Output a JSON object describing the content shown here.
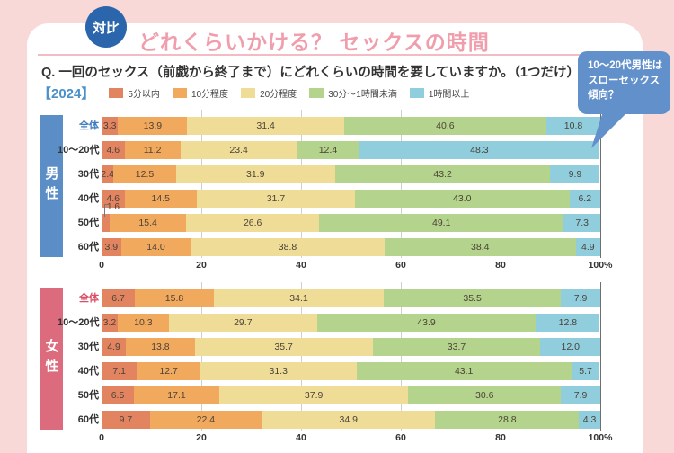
{
  "header": {
    "badge": "対比",
    "title": "どれくらいかける？ セックスの時間",
    "question": "Q. 一回のセックス（前戯から終了まで）にどれくらいの時間を要していますか。（1つだけ）",
    "year_label": "【2024】"
  },
  "callout": {
    "lines": [
      "10～20代男性は",
      "スローセックス",
      "傾向？"
    ]
  },
  "colors": {
    "background": "#F8D9D7",
    "card": "#FFFFFF",
    "title_pink": "#F09EAC",
    "badge_blue": "#2B66AC",
    "callout_blue": "#6190CB",
    "male_accent": "#5B8EC6",
    "male_total_label": "#3F7DBF",
    "female_accent": "#DB6B7D",
    "female_total_label": "#D84F66",
    "year_blue": "#4A90C9"
  },
  "chart_data": {
    "type": "bar",
    "stacked": true,
    "orientation": "horizontal",
    "unit": "%",
    "xlim": [
      0,
      100
    ],
    "x_ticks": [
      "0",
      "20",
      "40",
      "60",
      "80",
      "100%"
    ],
    "grid": true,
    "legend": [
      "5分以内",
      "10分程度",
      "20分程度",
      "30分～1時間未満",
      "1時間以上"
    ],
    "segment_colors": [
      "#E28460",
      "#F1A95E",
      "#EFDD97",
      "#B4D38C",
      "#90CEDD"
    ],
    "groups": [
      {
        "name": "男性",
        "accent": "#5B8EC6",
        "categories": [
          "全体",
          "10～20代",
          "30代",
          "40代",
          "50代",
          "60代"
        ],
        "series": [
          [
            3.3,
            13.9,
            31.4,
            40.6,
            10.8
          ],
          [
            4.6,
            11.2,
            23.4,
            12.4,
            48.3
          ],
          [
            2.4,
            12.5,
            31.9,
            43.2,
            9.9
          ],
          [
            4.6,
            14.5,
            31.7,
            43.0,
            6.2
          ],
          [
            1.6,
            15.4,
            26.6,
            49.1,
            7.3
          ],
          [
            3.9,
            14.0,
            38.8,
            38.4,
            4.9
          ]
        ]
      },
      {
        "name": "女性",
        "accent": "#DB6B7D",
        "categories": [
          "全体",
          "10～20代",
          "30代",
          "40代",
          "50代",
          "60代"
        ],
        "series": [
          [
            6.7,
            15.8,
            34.1,
            35.5,
            7.9
          ],
          [
            3.2,
            10.3,
            29.7,
            43.9,
            12.8
          ],
          [
            4.9,
            13.8,
            35.7,
            33.7,
            12.0
          ],
          [
            7.1,
            12.7,
            31.3,
            43.1,
            5.7
          ],
          [
            6.5,
            17.1,
            37.9,
            30.6,
            7.9
          ],
          [
            9.7,
            22.4,
            34.9,
            28.8,
            4.3
          ]
        ]
      }
    ]
  }
}
